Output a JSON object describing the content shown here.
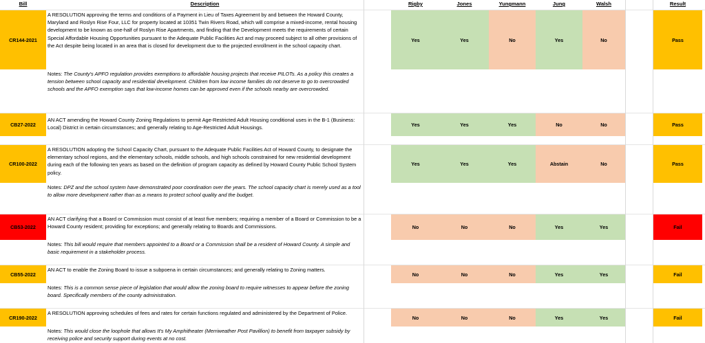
{
  "headers": {
    "bill": "Bill",
    "description": "Description",
    "rigby": "Rigby",
    "jones": "Jones",
    "yungmann": "Yungmann",
    "jung": "Jung",
    "walsh": "Walsh",
    "result": "Result"
  },
  "notes_label": "Notes:",
  "colors": {
    "yes": "#c6e0b4",
    "no": "#f8cbad",
    "pass": "#ffc000",
    "fail": "#ff0000"
  },
  "rows": [
    {
      "bill": "CR144-2021",
      "description": "A RESOLUTION approving the terms and conditions of a Payment in Lieu of Taxes Agreement by and between the Howard County, Maryland and Roslyn Rise Four, LLC for property located at 10351 Twin Rivers Road, which will comprise a mixed-income, rental housing development to be known as one-half of Roslyn Rise Apartments, and finding that the Development meets the requirements of certain Special Affordable Housing Opportunities pursuant to the Adequate Public Facilities Act and may proceed subject to all other provisions of the Act despite being located in an area that is closed for development due to the projected enrollment in the school capacity chart.",
      "votes": [
        "Yes",
        "Yes",
        "No",
        "Yes",
        "No"
      ],
      "result": "Pass",
      "notes": "The County's APFO regulation provides exemptions to affordable housing projects that receive PILOTs. As a policy this creates a tension between school capacity and residential development. Children from low income families do not deserve to go to overcrowded schools and the APFO exemption says that low-income homes can be approved even if the schools nearby are overcrowded."
    },
    {
      "bill": "CB27-2022",
      "description": "AN ACT amending the Howard County Zoning Regulations to permit Age-Restricted Adult Housing conditional uses in the B-1 (Business: Local) District in certain circumstances; and generally relating to Age-Restricted Adult Housings.",
      "votes": [
        "Yes",
        "Yes",
        "Yes",
        "No",
        "No"
      ],
      "result": "Pass",
      "notes": ""
    },
    {
      "bill": "CR100-2022",
      "description": "A RESOLUTION adopting the School Capacity Chart, pursuant to the Adequate Public Facilities Act of Howard County, to designate the elementary school regions, and the elementary schools, middle schools, and high schools constrained for new residential development during each of the following ten years as based on the definition of program capacity as defined by Howard County Public School System policy.",
      "votes": [
        "Yes",
        "Yes",
        "Yes",
        "Abstain",
        "No"
      ],
      "result": "Pass",
      "notes": "DPZ and the school system have demonstrated poor coordination over the years. The school capacity chart is merely used as a tool to allow more development rather than as a means to protect school quality and the budget."
    },
    {
      "bill": "CB53-2022",
      "description": "AN ACT clarifying that a Board or Commission must consist of at least five members; requiring a member of a Board or Commission to be a Howard County resident; providing for exceptions; and generally relating to Boards and Commissions.",
      "votes": [
        "No",
        "No",
        "No",
        "Yes",
        "Yes"
      ],
      "result": "Fail",
      "notes": "This bill would require that members appointed to a Board or a Commission shall be a resident of Howard County. A simple and basic requirement in a stakeholder process."
    },
    {
      "bill": "CB55-2022",
      "description": "AN ACT to enable the Zoning Board to issue a subpoena in certain circumstances; and generally relating to Zoning matters.",
      "votes": [
        "No",
        "No",
        "No",
        "Yes",
        "Yes"
      ],
      "result": "Fail",
      "notes": "This is a common sense piece of legislation that would allow the zoning board to require witnesses to appear before the zoning board. Specifically members of the county administration."
    },
    {
      "bill": "CR190-2022",
      "description": "A RESOLUTION approving schedules of fees and rates for certain functions regulated and administered by the Department of Police.",
      "votes": [
        "No",
        "No",
        "No",
        "Yes",
        "Yes"
      ],
      "result": "Fail",
      "notes": "This would close the loophole that allows It's My Amphitheater (Merriweather Post Pavillion) to benefit from taxpayer subsidy by receiving police and security support during events at no cost."
    }
  ]
}
